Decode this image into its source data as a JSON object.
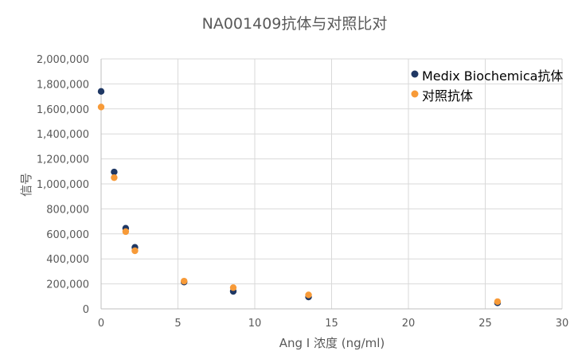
{
  "chart_data": {
    "type": "scatter",
    "title": "NA001409抗体与对照比对",
    "xlabel": "Ang I 浓度 (ng/ml)",
    "ylabel": "信号",
    "xlim": [
      0,
      30
    ],
    "ylim": [
      0,
      2000000
    ],
    "x_ticks": [
      0,
      5,
      10,
      15,
      20,
      25,
      30
    ],
    "x_tick_labels": [
      "0",
      "5",
      "10",
      "15",
      "20",
      "25",
      "30"
    ],
    "y_ticks": [
      0,
      200000,
      400000,
      600000,
      800000,
      1000000,
      1200000,
      1400000,
      1600000,
      1800000,
      2000000
    ],
    "y_tick_labels": [
      "0",
      "200,000",
      "400,000",
      "600,000",
      "800,000",
      "1,000,000",
      "1,200,000",
      "1,400,000",
      "1,600,000",
      "1,800,000",
      "2,000,000"
    ],
    "grid": true,
    "legend_position": "top-right",
    "series": [
      {
        "name": "Medix Biochemica抗体",
        "color": "#1F3864",
        "points": [
          {
            "x": 0,
            "y": 1740000
          },
          {
            "x": 0.85,
            "y": 1095000
          },
          {
            "x": 1.6,
            "y": 645000
          },
          {
            "x": 2.2,
            "y": 492000
          },
          {
            "x": 5.4,
            "y": 215000
          },
          {
            "x": 8.6,
            "y": 140000
          },
          {
            "x": 13.5,
            "y": 95000
          },
          {
            "x": 25.8,
            "y": 48000
          }
        ]
      },
      {
        "name": "对照抗体",
        "color": "#F79A38",
        "points": [
          {
            "x": 0,
            "y": 1615000
          },
          {
            "x": 0.85,
            "y": 1050000
          },
          {
            "x": 1.6,
            "y": 618000
          },
          {
            "x": 2.2,
            "y": 465000
          },
          {
            "x": 5.4,
            "y": 222000
          },
          {
            "x": 8.6,
            "y": 170000
          },
          {
            "x": 13.5,
            "y": 112000
          },
          {
            "x": 25.8,
            "y": 58000
          }
        ]
      }
    ]
  }
}
